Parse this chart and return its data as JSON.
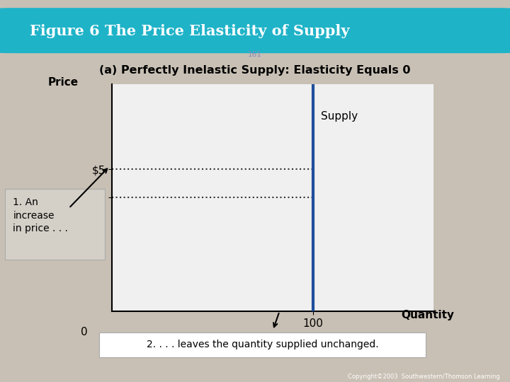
{
  "title_banner": "Figure 6 The Price Elasticity of Supply",
  "subtitle_num": "161",
  "subtitle": "(a) Perfectly Inelastic Supply: Elasticity Equals 0",
  "ylabel": "Price",
  "xlabel": "Quantity",
  "supply_x": 100,
  "price_5": 5,
  "price_4": 4,
  "xtick_val": 100,
  "xlim": [
    0,
    160
  ],
  "ylim": [
    0,
    8
  ],
  "supply_label": "Supply",
  "annotation1": "1. An\nincrease\nin price . . .",
  "annotation2": "2. . . . leaves the quantity supplied unchanged.",
  "supply_color": "#1f4e9c",
  "dotted_color": "#333333",
  "bg_color": "#c8c0b4",
  "plot_bg": "#f0f0f0",
  "banner_color": "#1fb3c8",
  "banner_text_color": "#ffffff",
  "copyright": "Copyright©2003  Southwestern/Thomson Learning"
}
